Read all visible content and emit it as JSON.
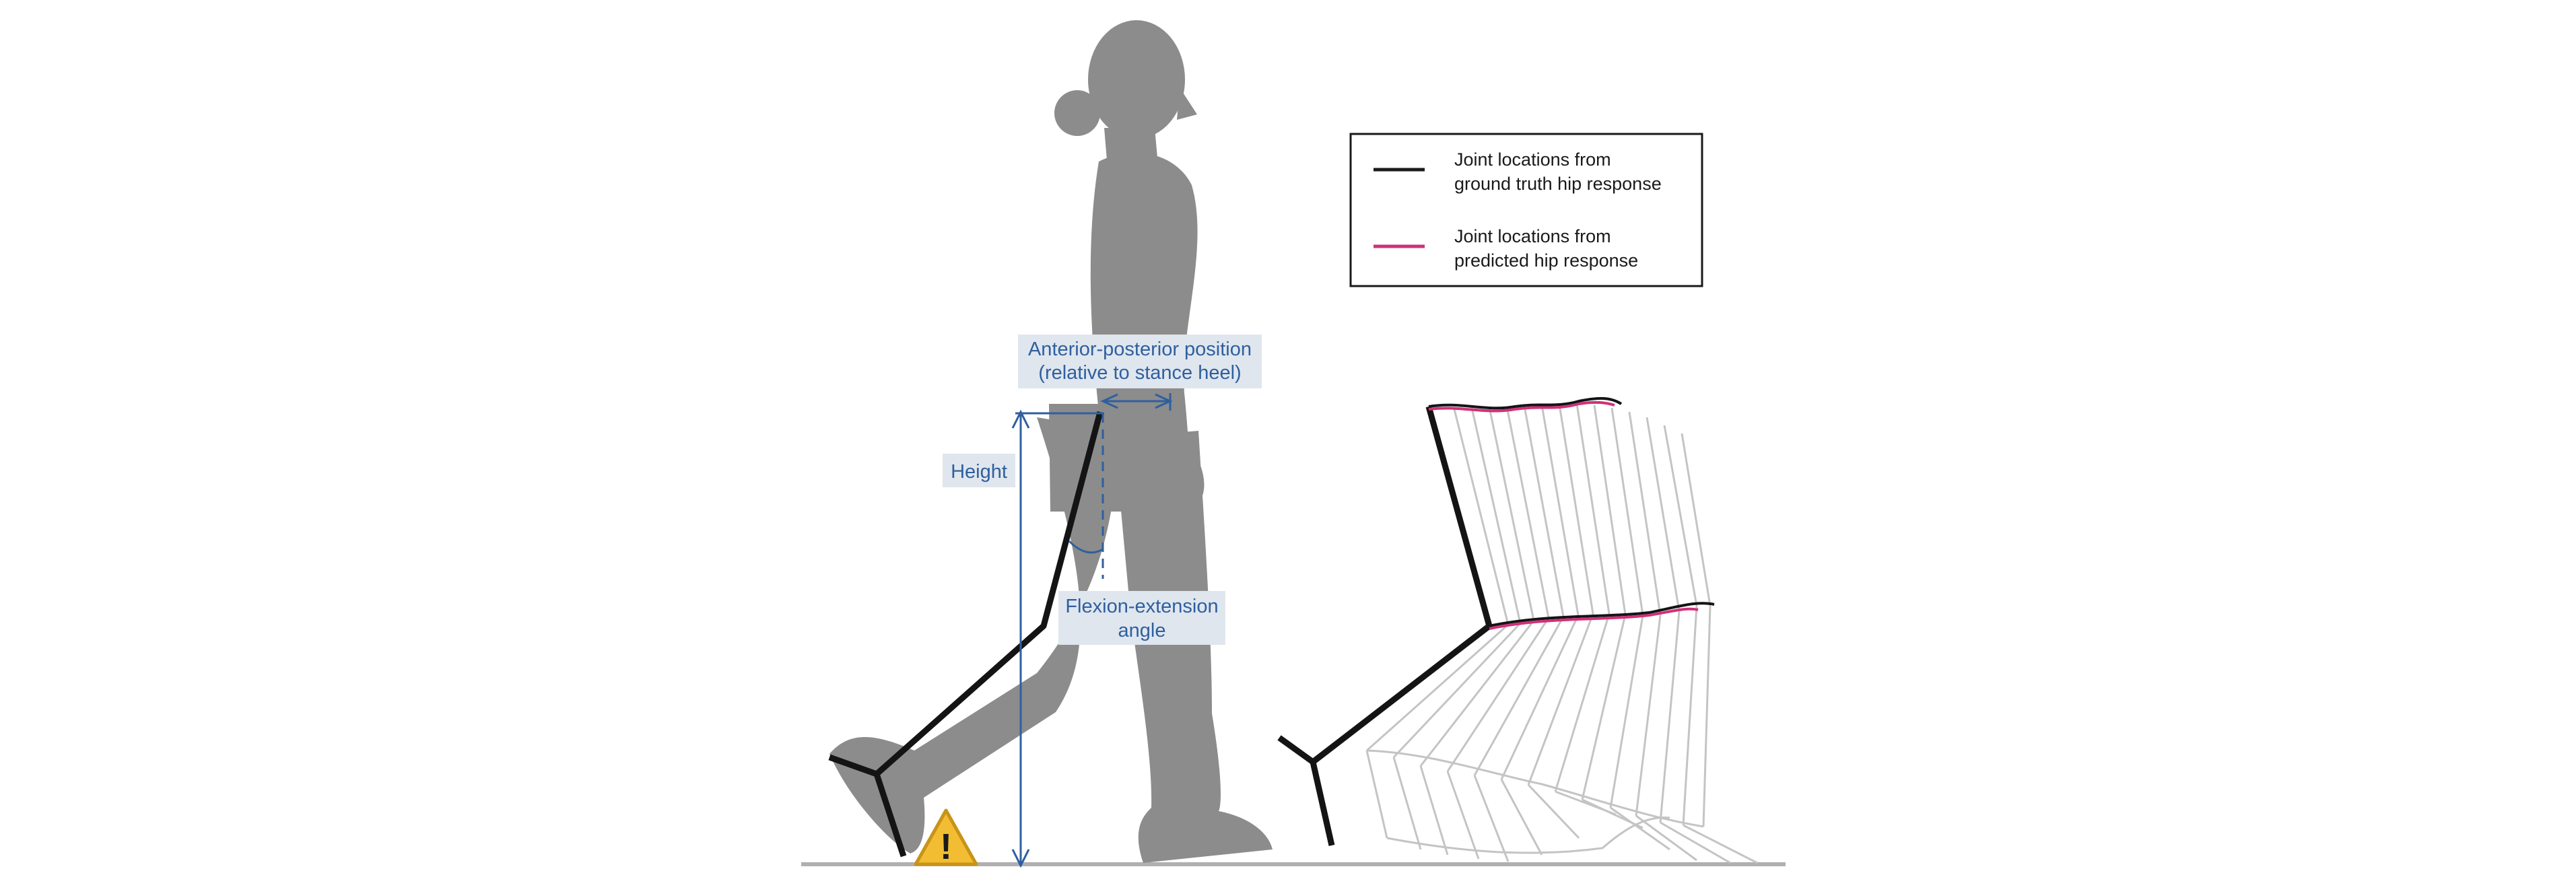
{
  "annotations": {
    "ap_position": [
      "Anterior-posterior position",
      "(relative to stance heel)"
    ],
    "height": "Height",
    "flexion": [
      "Flexion-extension",
      "angle"
    ],
    "warning_glyph": "!"
  },
  "legend": {
    "items": [
      {
        "lines": [
          "Joint locations from",
          "ground truth hip response"
        ],
        "color": "#1a1a1a"
      },
      {
        "lines": [
          "Joint locations from",
          "predicted hip response"
        ],
        "color": "#d0307a"
      }
    ]
  },
  "colors": {
    "silhouette": "#8c8c8c",
    "skeleton": "#141414",
    "predicted": "#d0307a",
    "annotation": "#2f5f9e",
    "label_box": "#dfe6ee",
    "ghost_lines": "#c4c4c4",
    "warning": "#f2bd33",
    "ground": "#b0b0b0"
  },
  "icons": [
    "person-silhouette",
    "warning-icon"
  ]
}
